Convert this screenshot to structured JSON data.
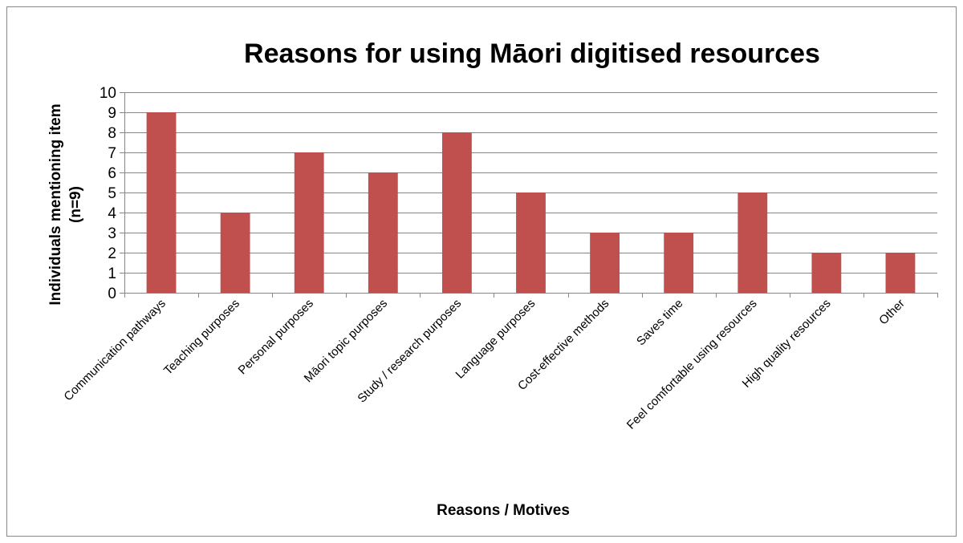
{
  "chart_data": {
    "type": "bar",
    "title": "Reasons for using Māori digitised resources",
    "xlabel": "Reasons / Motives",
    "ylabel": "Individuals mentioning item (n=9)",
    "ylabel_lines": [
      "Individuals mentioning item",
      "(n=9)"
    ],
    "categories": [
      "Communication pathways",
      "Teaching purposes",
      "Personal purposes",
      "Māori topic purposes",
      "Study / research purposes",
      "Language purposes",
      "Cost-effective methods",
      "Saves time",
      "Feel comfortable using resources",
      "High quality resources",
      "Other"
    ],
    "values": [
      9,
      4,
      7,
      6,
      8,
      5,
      3,
      3,
      5,
      2,
      2
    ],
    "ylim": [
      0,
      10
    ],
    "yticks": [
      0,
      1,
      2,
      3,
      4,
      5,
      6,
      7,
      8,
      9,
      10
    ],
    "grid": true,
    "legend": "none",
    "bar_color": "#c0504d",
    "grid_color": "#868686",
    "frame_color": "#888888"
  }
}
